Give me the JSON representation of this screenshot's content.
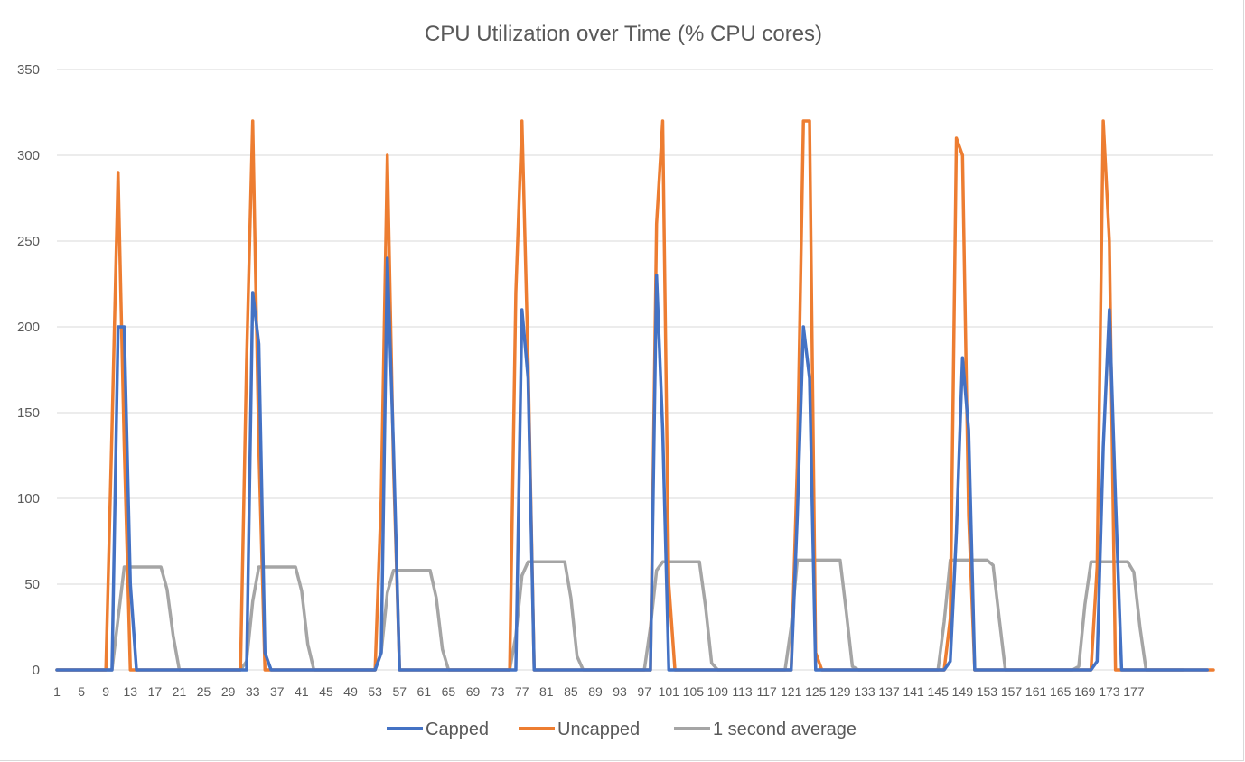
{
  "chart_data": {
    "type": "line",
    "title": "CPU Utilization over Time (% CPU cores)",
    "xlabel": "",
    "ylabel": "",
    "ylim": [
      0,
      350
    ],
    "yticks": [
      0,
      50,
      100,
      150,
      200,
      250,
      300,
      350
    ],
    "grid": true,
    "legend_position": "bottom",
    "x_tick_labels": [
      "1",
      "5",
      "9",
      "13",
      "17",
      "21",
      "25",
      "29",
      "33",
      "37",
      "41",
      "45",
      "49",
      "53",
      "57",
      "61",
      "65",
      "69",
      "73",
      "77",
      "81",
      "85",
      "89",
      "93",
      "97",
      "101",
      "105",
      "109",
      "113",
      "117",
      "121",
      "125",
      "129",
      "133",
      "137",
      "141",
      "145",
      "149",
      "153",
      "157",
      "161",
      "165",
      "169",
      "173",
      "177"
    ],
    "series": [
      {
        "name": "Capped",
        "color": "#4472c4",
        "values": [
          0,
          0,
          0,
          0,
          0,
          0,
          0,
          0,
          0,
          0,
          200,
          200,
          50,
          0,
          0,
          0,
          0,
          0,
          0,
          0,
          0,
          0,
          0,
          0,
          0,
          0,
          0,
          0,
          0,
          0,
          0,
          0,
          220,
          190,
          10,
          0,
          0,
          0,
          0,
          0,
          0,
          0,
          0,
          0,
          0,
          0,
          0,
          0,
          0,
          0,
          0,
          0,
          0,
          10,
          240,
          130,
          0,
          0,
          0,
          0,
          0,
          0,
          0,
          0,
          0,
          0,
          0,
          0,
          0,
          0,
          0,
          0,
          0,
          0,
          0,
          0,
          210,
          170,
          0,
          0,
          0,
          0,
          0,
          0,
          0,
          0,
          0,
          0,
          0,
          0,
          0,
          0,
          0,
          0,
          0,
          0,
          0,
          0,
          230,
          140,
          0,
          0,
          0,
          0,
          0,
          0,
          0,
          0,
          0,
          0,
          0,
          0,
          0,
          0,
          0,
          0,
          0,
          0,
          0,
          0,
          0,
          90,
          200,
          170,
          0,
          0,
          0,
          0,
          0,
          0,
          0,
          0,
          0,
          0,
          0,
          0,
          0,
          0,
          0,
          0,
          0,
          0,
          0,
          0,
          0,
          0,
          5,
          80,
          182,
          140,
          0,
          0,
          0,
          0,
          0,
          0,
          0,
          0,
          0,
          0,
          0,
          0,
          0,
          0,
          0,
          0,
          0,
          0,
          0,
          0,
          5,
          130,
          210,
          100,
          0,
          0,
          0,
          0,
          0,
          0,
          0,
          0,
          0,
          0,
          0,
          0,
          0,
          0,
          0
        ]
      },
      {
        "name": "Uncapped",
        "color": "#ed7d31",
        "values": [
          0,
          0,
          0,
          0,
          0,
          0,
          0,
          0,
          0,
          140,
          290,
          130,
          0,
          0,
          0,
          0,
          0,
          0,
          0,
          0,
          0,
          0,
          0,
          0,
          0,
          0,
          0,
          0,
          0,
          0,
          0,
          180,
          320,
          130,
          0,
          0,
          0,
          0,
          0,
          0,
          0,
          0,
          0,
          0,
          0,
          0,
          0,
          0,
          0,
          0,
          0,
          0,
          0,
          100,
          300,
          120,
          0,
          0,
          0,
          0,
          0,
          0,
          0,
          0,
          0,
          0,
          0,
          0,
          0,
          0,
          0,
          0,
          0,
          0,
          0,
          220,
          320,
          180,
          0,
          0,
          0,
          0,
          0,
          0,
          0,
          0,
          0,
          0,
          0,
          0,
          0,
          0,
          0,
          0,
          0,
          0,
          0,
          0,
          260,
          320,
          50,
          0,
          0,
          0,
          0,
          0,
          0,
          0,
          0,
          0,
          0,
          0,
          0,
          0,
          0,
          0,
          0,
          0,
          0,
          0,
          0,
          120,
          320,
          320,
          10,
          0,
          0,
          0,
          0,
          0,
          0,
          0,
          0,
          0,
          0,
          0,
          0,
          0,
          0,
          0,
          0,
          0,
          0,
          0,
          0,
          0,
          30,
          310,
          300,
          90,
          0,
          0,
          0,
          0,
          0,
          0,
          0,
          0,
          0,
          0,
          0,
          0,
          0,
          0,
          0,
          0,
          0,
          0,
          0,
          0,
          60,
          320,
          250,
          0,
          0,
          0,
          0,
          0,
          0,
          0,
          0,
          0,
          0,
          0,
          0,
          0,
          0,
          0,
          0,
          0
        ]
      },
      {
        "name": "1 second average",
        "color": "#a5a5a5",
        "values": [
          0,
          0,
          0,
          0,
          0,
          0,
          0,
          0,
          0,
          0,
          30,
          60,
          60,
          60,
          60,
          60,
          60,
          60,
          47,
          20,
          0,
          0,
          0,
          0,
          0,
          0,
          0,
          0,
          0,
          0,
          0,
          5,
          40,
          60,
          60,
          60,
          60,
          60,
          60,
          60,
          46,
          15,
          0,
          0,
          0,
          0,
          0,
          0,
          0,
          0,
          0,
          0,
          0,
          10,
          45,
          58,
          58,
          58,
          58,
          58,
          58,
          58,
          42,
          12,
          0,
          0,
          0,
          0,
          0,
          0,
          0,
          0,
          0,
          0,
          0,
          20,
          55,
          63,
          63,
          63,
          63,
          63,
          63,
          63,
          42,
          8,
          0,
          0,
          0,
          0,
          0,
          0,
          0,
          0,
          0,
          0,
          0,
          25,
          58,
          63,
          63,
          63,
          63,
          63,
          63,
          63,
          37,
          4,
          0,
          0,
          0,
          0,
          0,
          0,
          0,
          0,
          0,
          0,
          0,
          0,
          25,
          64,
          64,
          64,
          64,
          64,
          64,
          64,
          64,
          34,
          2,
          0,
          0,
          0,
          0,
          0,
          0,
          0,
          0,
          0,
          0,
          0,
          0,
          0,
          0,
          28,
          64,
          64,
          64,
          64,
          64,
          64,
          64,
          61,
          30,
          0,
          0,
          0,
          0,
          0,
          0,
          0,
          0,
          0,
          0,
          0,
          0,
          2,
          38,
          63,
          63,
          63,
          63,
          63,
          63,
          63,
          57,
          25,
          0,
          0,
          0,
          0,
          0,
          0,
          0
        ]
      }
    ]
  }
}
